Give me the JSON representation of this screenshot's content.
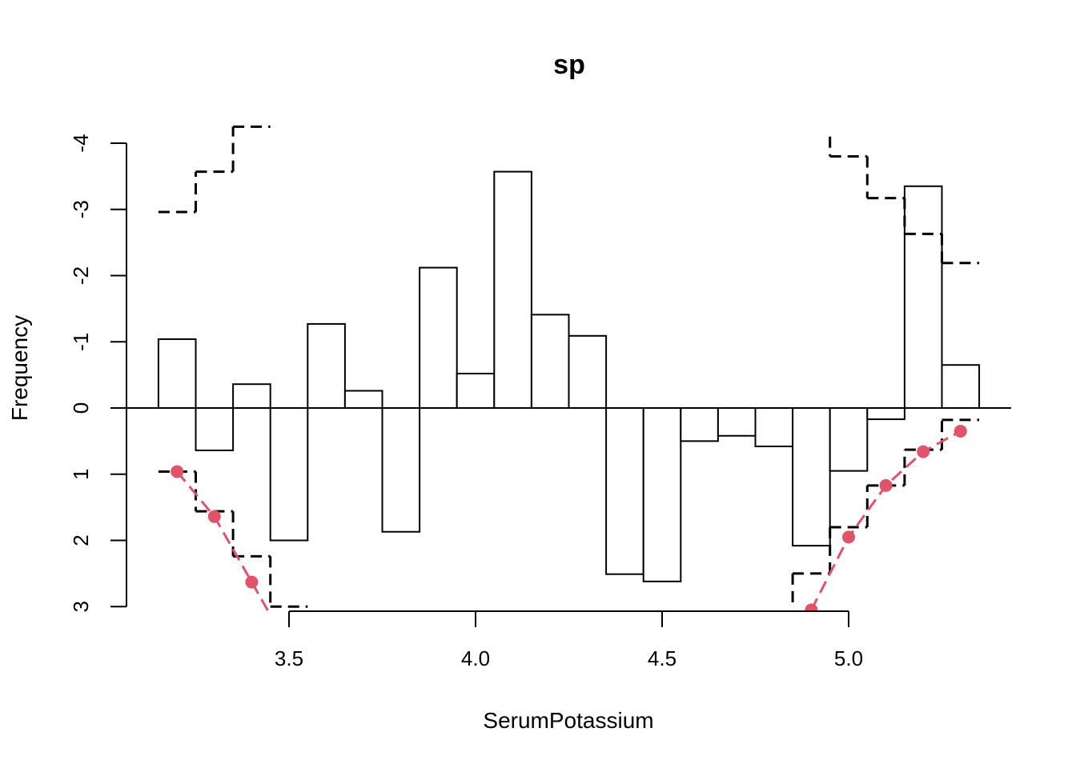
{
  "chart_data": {
    "type": "bar",
    "title": "sp",
    "xlabel": "SerumPotassium",
    "ylabel": "Frequency",
    "xlim": [
      3.03,
      5.45
    ],
    "ylim": [
      3.1,
      -4.5
    ],
    "x_ticks": [
      {
        "value": 3.5,
        "label": "3.5"
      },
      {
        "value": 4.0,
        "label": "4.0"
      },
      {
        "value": 4.5,
        "label": "4.5"
      },
      {
        "value": 5.0,
        "label": "5.0"
      }
    ],
    "y_ticks": [
      {
        "value": -4,
        "label": "-4"
      },
      {
        "value": -3,
        "label": "-3"
      },
      {
        "value": -2,
        "label": "-2"
      },
      {
        "value": -1,
        "label": "-1"
      },
      {
        "value": 0,
        "label": "0"
      },
      {
        "value": 1,
        "label": "1"
      },
      {
        "value": 2,
        "label": "2"
      },
      {
        "value": 3,
        "label": "3"
      }
    ],
    "bin_width": 0.1,
    "bins": [
      {
        "x": 3.2,
        "value": -1.04
      },
      {
        "x": 3.3,
        "value": 0.64
      },
      {
        "x": 3.4,
        "value": -0.36
      },
      {
        "x": 3.5,
        "value": 2.0
      },
      {
        "x": 3.6,
        "value": -1.27
      },
      {
        "x": 3.7,
        "value": -0.26
      },
      {
        "x": 3.8,
        "value": 1.87
      },
      {
        "x": 3.9,
        "value": -2.12
      },
      {
        "x": 4.0,
        "value": -0.52
      },
      {
        "x": 4.1,
        "value": -3.57
      },
      {
        "x": 4.2,
        "value": -1.41
      },
      {
        "x": 4.3,
        "value": -1.09
      },
      {
        "x": 4.4,
        "value": 2.51
      },
      {
        "x": 4.5,
        "value": 2.62
      },
      {
        "x": 4.6,
        "value": 0.5
      },
      {
        "x": 4.7,
        "value": 0.42
      },
      {
        "x": 4.8,
        "value": 0.58
      },
      {
        "x": 4.9,
        "value": 2.08
      },
      {
        "x": 5.0,
        "value": 0.95
      },
      {
        "x": 5.1,
        "value": 0.17
      },
      {
        "x": 5.2,
        "value": -3.35
      },
      {
        "x": 5.3,
        "value": -0.65
      }
    ],
    "upper_limit_steps": [
      {
        "x": 3.2,
        "value": -2.96
      },
      {
        "x": 3.3,
        "value": -3.57
      },
      {
        "x": 3.4,
        "value": -4.25
      },
      {
        "x": 5.0,
        "value": -3.8
      },
      {
        "x": 5.1,
        "value": -3.17
      },
      {
        "x": 5.2,
        "value": -2.63
      },
      {
        "x": 5.3,
        "value": -2.19
      }
    ],
    "lower_limit_steps": [
      {
        "x": 3.2,
        "value": 0.96
      },
      {
        "x": 3.3,
        "value": 1.56
      },
      {
        "x": 3.4,
        "value": 2.24
      },
      {
        "x": 3.5,
        "value": 3.0
      },
      {
        "x": 4.9,
        "value": 2.5
      },
      {
        "x": 5.0,
        "value": 1.8
      },
      {
        "x": 5.1,
        "value": 1.17
      },
      {
        "x": 5.2,
        "value": 0.63
      },
      {
        "x": 5.3,
        "value": 0.18
      }
    ],
    "points": [
      {
        "x": 3.2,
        "value": 0.96
      },
      {
        "x": 3.3,
        "value": 1.64
      },
      {
        "x": 3.4,
        "value": 2.63
      },
      {
        "x": 4.9,
        "value": 3.05
      },
      {
        "x": 5.0,
        "value": 1.95
      },
      {
        "x": 5.1,
        "value": 1.17
      },
      {
        "x": 5.2,
        "value": 0.66
      },
      {
        "x": 5.3,
        "value": 0.35
      }
    ],
    "colors": {
      "bars_fill": "#ffffff",
      "bars_stroke": "#000000",
      "limit_lines": "#000000",
      "points": "#DF536B"
    }
  }
}
